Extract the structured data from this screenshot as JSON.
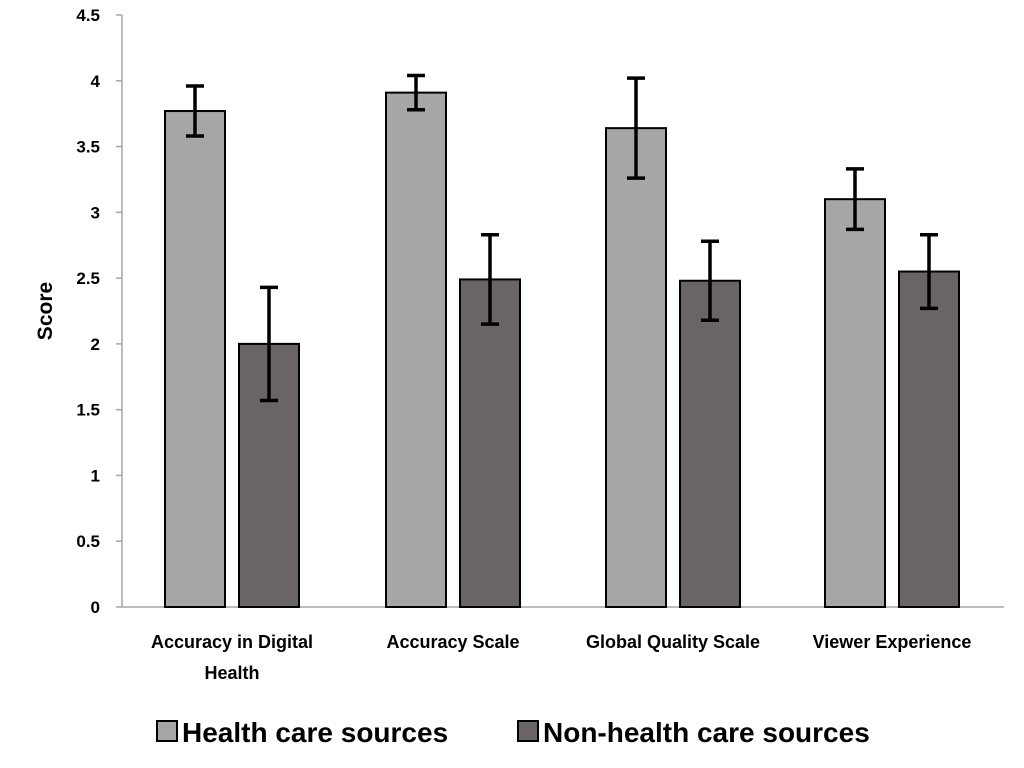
{
  "chart_data": {
    "type": "bar",
    "title": "",
    "xlabel": "",
    "ylabel": "Score",
    "ylim": [
      0,
      4.5
    ],
    "yticks": [
      "0",
      "0.5",
      "1",
      "1.5",
      "2",
      "2.5",
      "3",
      "3.5",
      "4",
      "4.5"
    ],
    "grid": false,
    "legend_position": "bottom",
    "categories": [
      [
        "Accuracy in Digital",
        "Health"
      ],
      [
        "Accuracy Scale"
      ],
      [
        "Global Quality Scale"
      ],
      [
        "Viewer Experience"
      ]
    ],
    "series": [
      {
        "name": "Health care sources",
        "color": "#a6a6a6",
        "values": [
          3.77,
          3.91,
          3.64,
          3.1
        ],
        "error_low": [
          3.58,
          3.78,
          3.26,
          2.87
        ],
        "error_high": [
          3.96,
          4.04,
          4.02,
          3.33
        ]
      },
      {
        "name": "Non-health care sources",
        "color": "#6b6464",
        "values": [
          2.0,
          2.49,
          2.48,
          2.55
        ],
        "error_low": [
          1.57,
          2.15,
          2.18,
          2.27
        ],
        "error_high": [
          2.43,
          2.83,
          2.78,
          2.83
        ]
      }
    ]
  }
}
